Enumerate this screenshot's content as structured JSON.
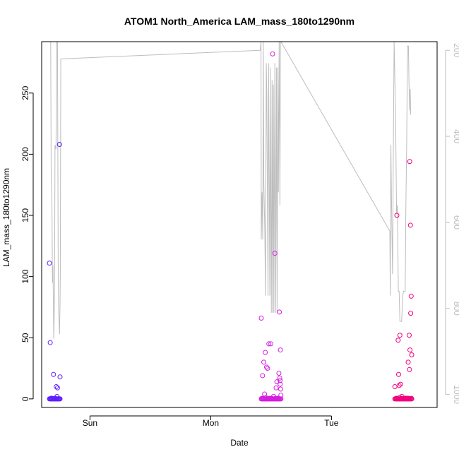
{
  "chart_data": {
    "type": "scatter",
    "title": "ATOM1 North_America LAM_mass_180to1290nm",
    "xlabel": "Date",
    "ylabel": "LAM_mass_180to1290nm",
    "x_ticks": [
      {
        "label": "Sun",
        "x": 0
      },
      {
        "label": "Mon",
        "x": 24
      },
      {
        "label": "Tue",
        "x": 48
      }
    ],
    "xlim": [
      -9.6,
      69.0
    ],
    "ylim": [
      -7,
      292
    ],
    "y_ticks": [
      0,
      50,
      100,
      150,
      200,
      250
    ],
    "y2_ticks": [
      200,
      400,
      600,
      800,
      1000
    ],
    "y2lim": [
      1030,
      180
    ],
    "y2_reversed": true,
    "y2_color": "#bdbdbd",
    "grid": false,
    "point_series": [
      {
        "color": "#5f1fff",
        "x_hours": [
          -8.05,
          -7.9,
          -7.6,
          -7.25,
          -6.7,
          -6.45,
          -6.05,
          -5.95,
          -7.75,
          -7.3,
          -6.9,
          -6.55,
          -6.2
        ],
        "values": [
          111,
          46,
          0.5,
          20,
          10,
          9,
          208,
          18,
          0.5,
          0.3,
          0.5,
          2,
          0.2
        ]
      },
      {
        "color": "#d61ddf",
        "x_hours": [
          34.05,
          34.3,
          34.55,
          34.85,
          35.1,
          35.3,
          35.55,
          35.95,
          36.3,
          36.75,
          37.15,
          37.65,
          37.85,
          34.2,
          34.7,
          35.2,
          35.8,
          36.5,
          37.0,
          37.4,
          37.55,
          37.72,
          37.78,
          37.8,
          37.9,
          37.95,
          34.5,
          35.0,
          35.7,
          36.2,
          36.9
        ],
        "values": [
          66,
          19,
          30,
          38,
          26,
          25,
          45,
          45,
          282,
          119,
          14,
          71,
          40,
          0.5,
          4,
          0.3,
          0.5,
          2,
          9,
          0.5,
          21,
          17,
          15,
          12,
          8,
          3,
          0.2,
          1,
          0.4,
          0.3,
          0.5
        ]
      },
      {
        "color": "#f2007f",
        "x_hours": [
          60.6,
          61.0,
          61.25,
          61.35,
          61.45,
          61.6,
          61.75,
          61.95,
          62.8,
          63.3,
          63.45,
          63.55,
          63.7,
          63.85,
          63.75,
          63.6,
          60.9,
          61.5,
          62.0,
          62.4,
          63.0,
          63.25,
          63.5,
          63.95,
          61.2,
          61.8,
          62.6,
          63.4,
          63.9
        ],
        "values": [
          10,
          150,
          48,
          20,
          11,
          52,
          12,
          0.5,
          0.5,
          0.5,
          52,
          194,
          142,
          84,
          70,
          40,
          0.5,
          1,
          2,
          0.3,
          0.5,
          30,
          24,
          36,
          0.2,
          0.4,
          0.5,
          0.3,
          0.4
        ]
      }
    ],
    "secondary_line": {
      "color": "#bdbdbd",
      "segments": [
        {
          "x_hours": [
            -7.8,
            -7.7,
            -7.55,
            -7.45,
            -7.35,
            -7.2,
            -7.05,
            -6.95,
            -6.75,
            -6.6,
            -6.45,
            -6.3,
            -6.2,
            -6.05,
            -5.95,
            -5.9,
            -5.8
          ],
          "y2": [
            180,
            500,
            560,
            740,
            700,
            870,
            780,
            420,
            430,
            180,
            180,
            740,
            810,
            860,
            790,
            720,
            220
          ]
        },
        {
          "x_hours": [
            -5.8,
            33.85
          ],
          "y2": [
            220,
            200
          ]
        },
        {
          "x_hours": [
            33.85,
            34.0,
            34.05,
            34.2,
            34.35,
            34.45,
            34.55,
            34.75,
            34.9,
            35.05,
            35.15,
            35.4,
            35.5,
            35.75,
            35.85,
            36.05,
            36.2,
            36.3,
            36.45,
            36.55,
            36.75,
            36.9,
            37.05,
            37.2,
            37.35,
            37.45,
            37.6,
            37.75,
            37.85,
            37.95
          ],
          "y2": [
            200,
            180,
            640,
            530,
            640,
            180,
            510,
            620,
            770,
            230,
            310,
            770,
            230,
            770,
            240,
            810,
            270,
            810,
            280,
            810,
            230,
            810,
            240,
            810,
            240,
            530,
            180,
            560,
            180,
            180
          ]
        },
        {
          "x_hours": [
            37.95,
            59.6
          ],
          "y2": [
            180,
            620
          ]
        },
        {
          "x_hours": [
            59.6,
            59.7,
            59.8,
            59.95,
            60.15,
            60.3,
            60.45,
            60.55,
            60.75,
            60.95,
            61.1,
            61.3,
            61.45,
            61.6,
            61.75,
            61.95,
            62.15,
            62.35,
            62.5,
            62.65,
            62.8,
            62.95,
            63.1,
            63.3,
            63.4,
            63.55,
            63.65,
            63.75
          ],
          "y2": [
            620,
            770,
            420,
            560,
            720,
            430,
            180,
            230,
            360,
            580,
            560,
            760,
            760,
            830,
            830,
            830,
            770,
            760,
            760,
            760,
            560,
            420,
            190,
            190,
            270,
            340,
            290,
            350
          ]
        }
      ]
    }
  }
}
